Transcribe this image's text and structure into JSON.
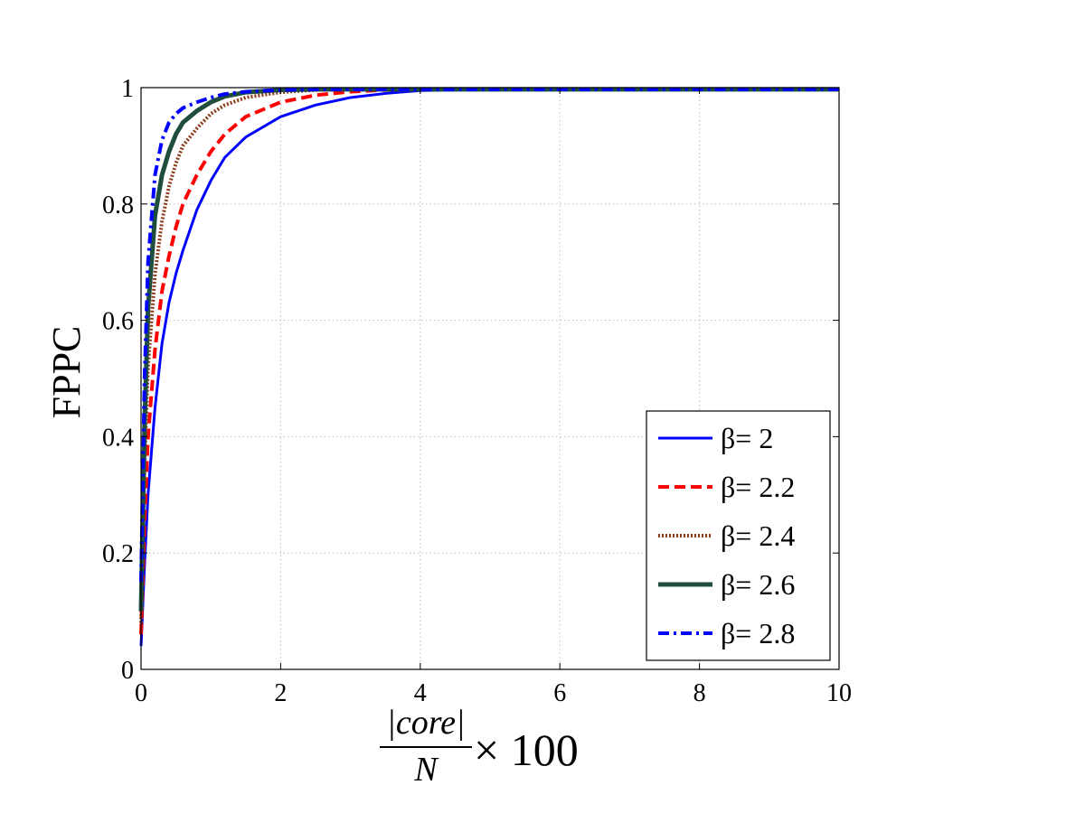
{
  "chart_data": {
    "type": "line",
    "title": "",
    "ylabel": "FPPC",
    "xlabel": {
      "numerator": "|core|",
      "denominator": "N",
      "suffix": "× 100"
    },
    "xlim": [
      0,
      10
    ],
    "ylim": [
      0,
      1
    ],
    "xticks": [
      0,
      2,
      4,
      6,
      8,
      10
    ],
    "yticks": [
      0,
      0.2,
      0.4,
      0.6,
      0.8,
      1
    ],
    "xtick_labels": [
      "0",
      "2",
      "4",
      "6",
      "8",
      "10"
    ],
    "ytick_labels": [
      "0",
      "0.2",
      "0.4",
      "0.6",
      "0.8",
      "1"
    ],
    "grid": true,
    "legend_position": "bottom-right",
    "series": [
      {
        "name": "β= 2",
        "color": "#0000ff",
        "style": "solid",
        "x": [
          0,
          0.05,
          0.1,
          0.2,
          0.3,
          0.4,
          0.5,
          0.6,
          0.8,
          1.0,
          1.2,
          1.5,
          2.0,
          2.5,
          3.0,
          3.5,
          4.0,
          5.0,
          6.0,
          8.0,
          10.0
        ],
        "y": [
          0.04,
          0.18,
          0.3,
          0.45,
          0.56,
          0.63,
          0.68,
          0.72,
          0.79,
          0.84,
          0.88,
          0.915,
          0.95,
          0.97,
          0.983,
          0.99,
          0.995,
          0.997,
          0.997,
          0.997,
          0.997
        ]
      },
      {
        "name": "β= 2.2",
        "color": "#ff0000",
        "style": "dashed",
        "x": [
          0,
          0.05,
          0.1,
          0.2,
          0.3,
          0.4,
          0.5,
          0.6,
          0.8,
          1.0,
          1.2,
          1.5,
          2.0,
          2.5,
          3.0,
          3.5,
          4.0,
          6.0,
          8.0,
          10.0
        ],
        "y": [
          0.06,
          0.25,
          0.4,
          0.55,
          0.65,
          0.71,
          0.76,
          0.8,
          0.85,
          0.89,
          0.92,
          0.95,
          0.975,
          0.987,
          0.993,
          0.996,
          0.997,
          0.997,
          0.997,
          0.997
        ]
      },
      {
        "name": "β= 2.4",
        "color": "#8b3a1a",
        "style": "dotted",
        "x": [
          0,
          0.05,
          0.1,
          0.2,
          0.3,
          0.4,
          0.5,
          0.6,
          0.8,
          1.0,
          1.2,
          1.5,
          2.0,
          2.5,
          3.0,
          4.0,
          6.0,
          8.0,
          10.0
        ],
        "y": [
          0.08,
          0.35,
          0.52,
          0.68,
          0.77,
          0.83,
          0.87,
          0.9,
          0.93,
          0.955,
          0.97,
          0.983,
          0.992,
          0.996,
          0.997,
          0.997,
          0.997,
          0.997,
          0.997
        ]
      },
      {
        "name": "β= 2.6",
        "color": "#1f4e3d",
        "style": "solid-thick",
        "x": [
          0,
          0.05,
          0.1,
          0.2,
          0.3,
          0.4,
          0.5,
          0.6,
          0.8,
          1.0,
          1.2,
          1.5,
          2.0,
          2.5,
          3.0,
          4.0,
          6.0,
          8.0,
          10.0
        ],
        "y": [
          0.1,
          0.42,
          0.62,
          0.78,
          0.85,
          0.89,
          0.92,
          0.94,
          0.96,
          0.975,
          0.985,
          0.992,
          0.996,
          0.997,
          0.997,
          0.997,
          0.997,
          0.997,
          0.997
        ]
      },
      {
        "name": "β= 2.8",
        "color": "#0000ff",
        "style": "dashdot",
        "x": [
          0,
          0.05,
          0.1,
          0.2,
          0.3,
          0.4,
          0.5,
          0.6,
          0.8,
          1.0,
          1.2,
          1.5,
          2.0,
          2.5,
          3.0,
          4.0,
          6.0,
          8.0,
          10.0
        ],
        "y": [
          0.15,
          0.5,
          0.7,
          0.85,
          0.91,
          0.94,
          0.955,
          0.965,
          0.975,
          0.983,
          0.989,
          0.993,
          0.996,
          0.997,
          0.997,
          0.997,
          0.997,
          0.997,
          0.997
        ]
      }
    ]
  }
}
